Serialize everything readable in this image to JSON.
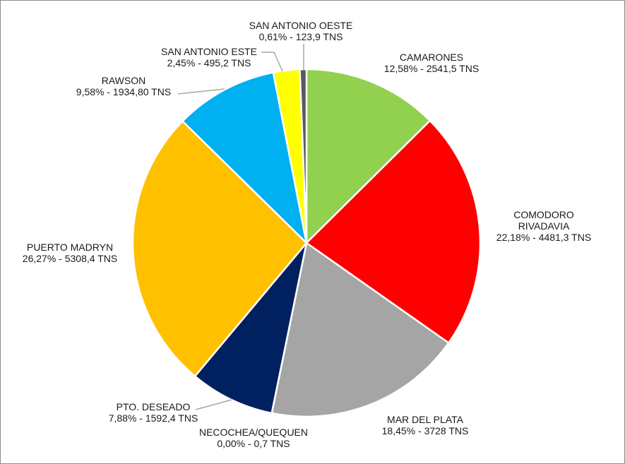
{
  "chart_data": {
    "type": "pie",
    "title": "",
    "legend": "none",
    "slices": [
      {
        "name": "CAMARONES",
        "percent": 12.58,
        "value": 2541.5,
        "lines": [
          "CAMARONES",
          "12,58% - 2541,5 TNS"
        ],
        "color": "#92d050"
      },
      {
        "name": "COMODORO RIVADAVIA",
        "percent": 22.18,
        "value": 4481.3,
        "lines": [
          "COMODORO",
          "RIVADAVIA",
          "22,18% - 4481,3 TNS"
        ],
        "color": "#ff0000"
      },
      {
        "name": "MAR DEL PLATA",
        "percent": 18.45,
        "value": 3728,
        "lines": [
          "MAR DEL PLATA",
          "18,45% - 3728 TNS"
        ],
        "color": "#a5a5a5"
      },
      {
        "name": "NECOCHEA/QUEQUEN",
        "percent": 0.0,
        "value": 0.7,
        "lines": [
          "NECOCHEA/QUEQUEN",
          "0,00% - 0,7 TNS"
        ],
        "color": "#d9d9d9"
      },
      {
        "name": "PTO. DESEADO",
        "percent": 7.88,
        "value": 1592.4,
        "lines": [
          "PTO. DESEADO",
          "7,88% - 1592,4 TNS"
        ],
        "color": "#002060"
      },
      {
        "name": "PUERTO MADRYN",
        "percent": 26.27,
        "value": 5308.4,
        "lines": [
          "PUERTO MADRYN",
          "26,27% - 5308,4 TNS"
        ],
        "color": "#ffc000"
      },
      {
        "name": "RAWSON",
        "percent": 9.58,
        "value": 1934.8,
        "lines": [
          "RAWSON",
          "9,58% - 1934,80 TNS"
        ],
        "color": "#00b0f0"
      },
      {
        "name": "SAN ANTONIO ESTE",
        "percent": 2.45,
        "value": 495.2,
        "lines": [
          "SAN ANTONIO ESTE",
          "2,45% - 495,2 TNS"
        ],
        "color": "#ffff00"
      },
      {
        "name": "SAN ANTONIO OESTE",
        "percent": 0.61,
        "value": 123.9,
        "lines": [
          "SAN ANTONIO OESTE",
          "0,61% - 123,9 TNS"
        ],
        "color": "#595959"
      }
    ]
  }
}
